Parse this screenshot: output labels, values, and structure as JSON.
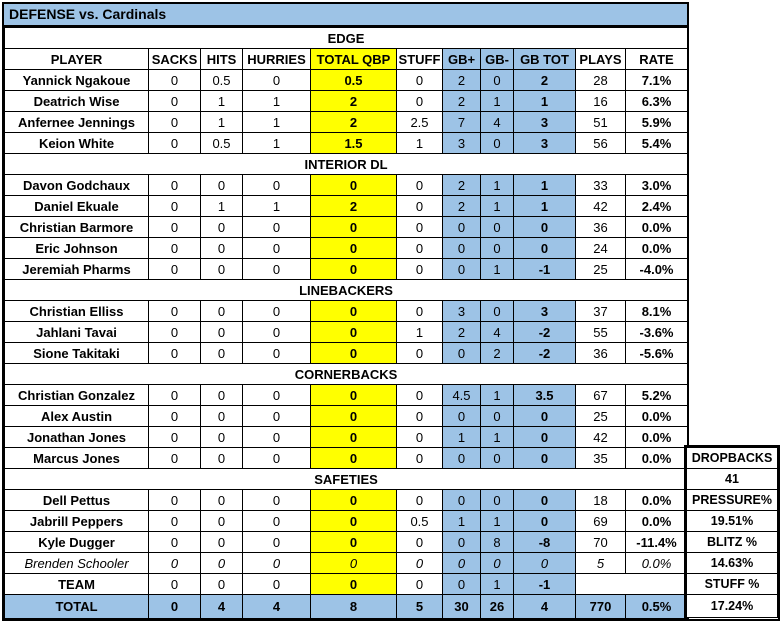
{
  "title": "DEFENSE vs. Cardinals",
  "columns": [
    "PLAYER",
    "SACKS",
    "HITS",
    "HURRIES",
    "TOTAL QBP",
    "STUFF",
    "GB+",
    "GB-",
    "GB TOT",
    "PLAYS",
    "RATE"
  ],
  "sections": [
    {
      "name": "EDGE",
      "rows": [
        {
          "player": "Yannick Ngakoue",
          "values": [
            "0",
            "0.5",
            "0",
            "0.5",
            "0",
            "2",
            "0",
            "2",
            "28",
            "7.1%"
          ]
        },
        {
          "player": "Deatrich Wise",
          "values": [
            "0",
            "1",
            "1",
            "2",
            "0",
            "2",
            "1",
            "1",
            "16",
            "6.3%"
          ]
        },
        {
          "player": "Anfernee Jennings",
          "values": [
            "0",
            "1",
            "1",
            "2",
            "2.5",
            "7",
            "4",
            "3",
            "51",
            "5.9%"
          ]
        },
        {
          "player": "Keion White",
          "values": [
            "0",
            "0.5",
            "1",
            "1.5",
            "1",
            "3",
            "0",
            "3",
            "56",
            "5.4%"
          ]
        }
      ]
    },
    {
      "name": "INTERIOR DL",
      "rows": [
        {
          "player": "Davon Godchaux",
          "values": [
            "0",
            "0",
            "0",
            "0",
            "0",
            "2",
            "1",
            "1",
            "33",
            "3.0%"
          ]
        },
        {
          "player": "Daniel Ekuale",
          "values": [
            "0",
            "1",
            "1",
            "2",
            "0",
            "2",
            "1",
            "1",
            "42",
            "2.4%"
          ]
        },
        {
          "player": "Christian Barmore",
          "values": [
            "0",
            "0",
            "0",
            "0",
            "0",
            "0",
            "0",
            "0",
            "36",
            "0.0%"
          ]
        },
        {
          "player": "Eric Johnson",
          "values": [
            "0",
            "0",
            "0",
            "0",
            "0",
            "0",
            "0",
            "0",
            "24",
            "0.0%"
          ]
        },
        {
          "player": "Jeremiah Pharms",
          "values": [
            "0",
            "0",
            "0",
            "0",
            "0",
            "0",
            "1",
            "-1",
            "25",
            "-4.0%"
          ]
        }
      ]
    },
    {
      "name": "LINEBACKERS",
      "rows": [
        {
          "player": "Christian Elliss",
          "values": [
            "0",
            "0",
            "0",
            "0",
            "0",
            "3",
            "0",
            "3",
            "37",
            "8.1%"
          ]
        },
        {
          "player": "Jahlani Tavai",
          "values": [
            "0",
            "0",
            "0",
            "0",
            "1",
            "2",
            "4",
            "-2",
            "55",
            "-3.6%"
          ]
        },
        {
          "player": "Sione Takitaki",
          "values": [
            "0",
            "0",
            "0",
            "0",
            "0",
            "0",
            "2",
            "-2",
            "36",
            "-5.6%"
          ]
        }
      ]
    },
    {
      "name": "CORNERBACKS",
      "rows": [
        {
          "player": "Christian Gonzalez",
          "values": [
            "0",
            "0",
            "0",
            "0",
            "0",
            "4.5",
            "1",
            "3.5",
            "67",
            "5.2%"
          ]
        },
        {
          "player": "Alex Austin",
          "values": [
            "0",
            "0",
            "0",
            "0",
            "0",
            "0",
            "0",
            "0",
            "25",
            "0.0%"
          ]
        },
        {
          "player": "Jonathan Jones",
          "values": [
            "0",
            "0",
            "0",
            "0",
            "0",
            "1",
            "1",
            "0",
            "42",
            "0.0%"
          ]
        },
        {
          "player": "Marcus Jones",
          "values": [
            "0",
            "0",
            "0",
            "0",
            "0",
            "0",
            "0",
            "0",
            "35",
            "0.0%"
          ]
        }
      ]
    },
    {
      "name": "SAFETIES",
      "rows": [
        {
          "player": "Dell Pettus",
          "values": [
            "0",
            "0",
            "0",
            "0",
            "0",
            "0",
            "0",
            "0",
            "18",
            "0.0%"
          ]
        },
        {
          "player": "Jabrill Peppers",
          "values": [
            "0",
            "0",
            "0",
            "0",
            "0.5",
            "1",
            "1",
            "0",
            "69",
            "0.0%"
          ]
        },
        {
          "player": "Kyle Dugger",
          "values": [
            "0",
            "0",
            "0",
            "0",
            "0",
            "0",
            "8",
            "-8",
            "70",
            "-11.4%"
          ]
        },
        {
          "player": "Brenden Schooler",
          "values": [
            "0",
            "0",
            "0",
            "0",
            "0",
            "0",
            "0",
            "0",
            "5",
            "0.0%"
          ],
          "italic": true
        },
        {
          "player": "TEAM",
          "values": [
            "0",
            "0",
            "0",
            "0",
            "0",
            "0",
            "1",
            "-1"
          ],
          "merged_tail": true
        }
      ]
    }
  ],
  "total_row": {
    "label": "TOTAL",
    "values": [
      "0",
      "4",
      "4",
      "8",
      "5",
      "30",
      "26",
      "4",
      "770",
      "0.5%"
    ]
  },
  "side_panel": {
    "rows": [
      "DROPBACKS",
      "41",
      "PRESSURE%",
      "19.51%",
      "BLITZ %",
      "14.63%",
      "STUFF %",
      "17.24%"
    ]
  },
  "colors": {
    "header_fill_blue": "#9DC3E6",
    "highlight_yellow": "#FFFF00",
    "border_black": "#000000"
  }
}
